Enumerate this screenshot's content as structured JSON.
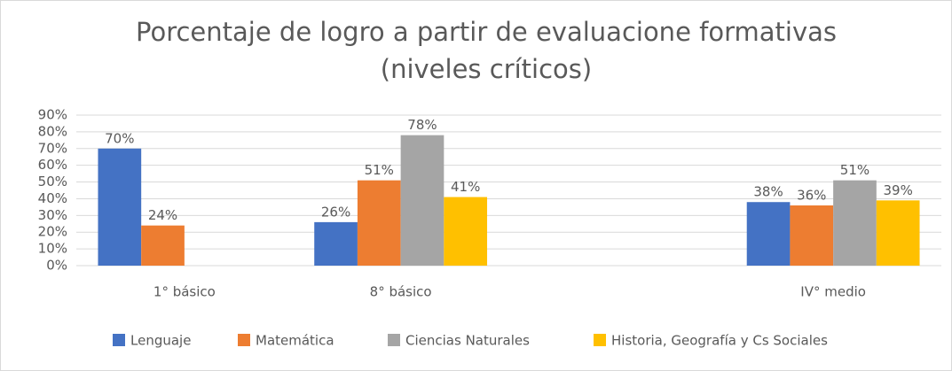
{
  "chart_data": {
    "type": "bar",
    "title": [
      "Porcentaje de logro a partir de evaluacione formativas",
      "(niveles críticos)"
    ],
    "categories": [
      "1° básico",
      "8° básico",
      null,
      "IV° medio"
    ],
    "series": [
      {
        "name": "Lenguaje",
        "color": "#4472c4",
        "values": [
          70,
          26,
          null,
          38
        ],
        "value_labels": [
          "70%",
          "26%",
          null,
          "38%"
        ]
      },
      {
        "name": "Matemática",
        "color": "#ed7d31",
        "values": [
          24,
          51,
          null,
          36
        ],
        "value_labels": [
          "24%",
          "51%",
          null,
          "36%"
        ]
      },
      {
        "name": "Ciencias Naturales",
        "color": "#a5a5a5",
        "values": [
          null,
          78,
          null,
          51
        ],
        "value_labels": [
          null,
          "78%",
          null,
          "51%"
        ]
      },
      {
        "name": "Historia, Geografía y Cs Sociales",
        "color": "#ffc000",
        "values": [
          null,
          41,
          null,
          39
        ],
        "value_labels": [
          null,
          "41%",
          null,
          "39%"
        ]
      }
    ],
    "ylim": [
      0,
      90
    ],
    "yticks": [
      {
        "value": 0,
        "label": "0%"
      },
      {
        "value": 10,
        "label": "10%"
      },
      {
        "value": 20,
        "label": "20%"
      },
      {
        "value": 30,
        "label": "30%"
      },
      {
        "value": 40,
        "label": "40%"
      },
      {
        "value": 50,
        "label": "50%"
      },
      {
        "value": 60,
        "label": "60%"
      },
      {
        "value": 70,
        "label": "70%"
      },
      {
        "value": 80,
        "label": "80%"
      },
      {
        "value": 90,
        "label": "90%"
      }
    ],
    "grid": true,
    "legend": "bottom"
  }
}
